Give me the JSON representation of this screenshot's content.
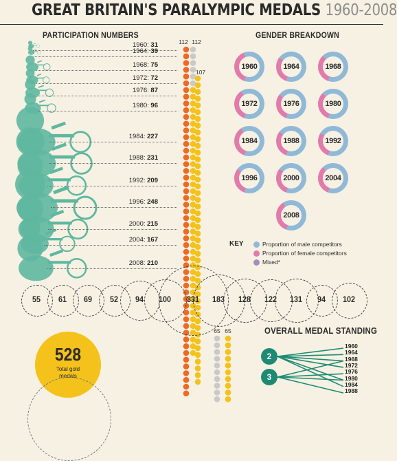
{
  "header": {
    "title_main": "GREAT BRITAIN'S PARALYMPIC MEDALS",
    "title_years": "1960-2008"
  },
  "sections": {
    "participation": "PARTICIPATION NUMBERS",
    "gender": "GENDER BREAKDOWN",
    "standing": "OVERALL MEDAL STANDING"
  },
  "colors": {
    "male": "#8fb9d6",
    "female": "#e27aab",
    "mixed": "#9f8fba",
    "teal": "#5fb7a0",
    "orange": "#ee6a24",
    "gold": "#f4c21a",
    "silver": "#c9c9c9",
    "dark_teal": "#1d8a73"
  },
  "participation": [
    {
      "year": "1960",
      "count": 31
    },
    {
      "year": "1964",
      "count": 39
    },
    {
      "year": "1968",
      "count": 75
    },
    {
      "year": "1972",
      "count": 72
    },
    {
      "year": "1976",
      "count": 87
    },
    {
      "year": "1980",
      "count": 96
    },
    {
      "year": "1984",
      "count": 227
    },
    {
      "year": "1988",
      "count": 231
    },
    {
      "year": "1992",
      "count": 209
    },
    {
      "year": "1996",
      "count": 248
    },
    {
      "year": "2000",
      "count": 215
    },
    {
      "year": "2004",
      "count": 167
    },
    {
      "year": "2008",
      "count": 210
    }
  ],
  "bead_columns": {
    "orange_label": "112",
    "silver_label": "112",
    "gold_label": "107",
    "lower_silver_label": "65",
    "lower_gold_label": "65"
  },
  "gender": [
    {
      "year": "1960",
      "female": 0.38
    },
    {
      "year": "1964",
      "female": 0.3
    },
    {
      "year": "1968",
      "female": 0.32
    },
    {
      "year": "1972",
      "female": 0.35
    },
    {
      "year": "1976",
      "female": 0.3
    },
    {
      "year": "1980",
      "female": 0.32
    },
    {
      "year": "1984",
      "female": 0.35
    },
    {
      "year": "1988",
      "female": 0.3
    },
    {
      "year": "1992",
      "female": 0.28
    },
    {
      "year": "1996",
      "female": 0.3
    },
    {
      "year": "2000",
      "female": 0.3
    },
    {
      "year": "2004",
      "female": 0.32
    },
    {
      "year": "2008",
      "female": 0.35
    }
  ],
  "key": {
    "label": "KEY",
    "items": [
      {
        "label": "Proportion of male competitors",
        "color": "#8fb9d6"
      },
      {
        "label": "Proportion of female competitors",
        "color": "#e27aab"
      },
      {
        "label": "Mixed*",
        "color": "#9f8fba"
      }
    ]
  },
  "medal_totals": [
    "55",
    "61",
    "69",
    "52",
    "94",
    "100",
    "331",
    "183",
    "128",
    "122",
    "131",
    "94",
    "102"
  ],
  "gold": {
    "total": "528",
    "label_line1": "Total gold",
    "label_line2": "medals"
  },
  "standing": {
    "positions": [
      "2",
      "3"
    ],
    "years": [
      "1960",
      "1964",
      "1968",
      "1972",
      "1976",
      "1980",
      "1984",
      "1988"
    ]
  }
}
